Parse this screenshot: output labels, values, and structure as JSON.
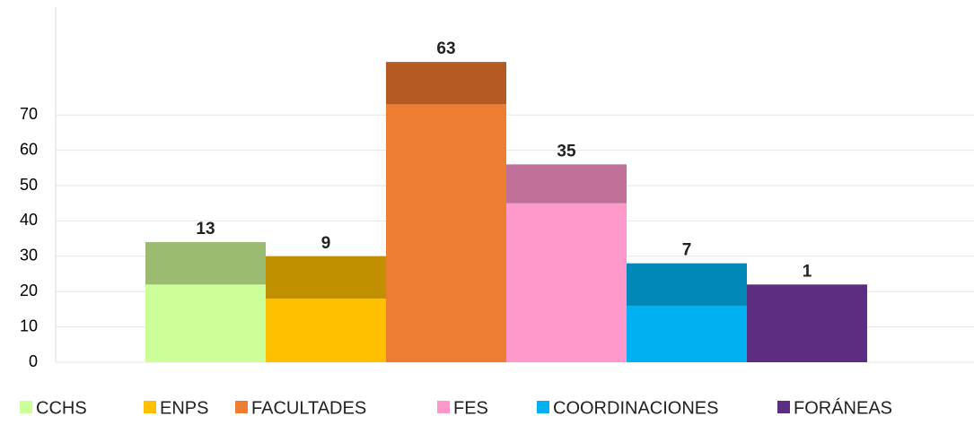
{
  "chart_data": {
    "type": "bar",
    "stacked": true,
    "categories": [
      "CCHS",
      "ENPS",
      "FACULTADES",
      "FES",
      "COORDINACIONES",
      "FORÁNEAS"
    ],
    "series": [
      {
        "colors": [
          "#ccff99",
          "#ffc000",
          "#ed7d31",
          "#ff99cc",
          "#00b0f0",
          "#5c2d82"
        ],
        "values": [
          22,
          18,
          73,
          45,
          16,
          22
        ]
      },
      {
        "colors": [
          "#9bbb72",
          "#c09000",
          "#b45a22",
          "#c07098",
          "#0088b8",
          "#5c2d82"
        ],
        "values": [
          12,
          12,
          12,
          11,
          12,
          0
        ]
      }
    ],
    "annotations": [
      "13",
      "9",
      "63",
      "35",
      "7",
      "1"
    ],
    "ylim": [
      0,
      100
    ],
    "yticks": [
      0,
      10,
      20,
      30,
      40,
      50,
      60,
      70
    ],
    "grid": true
  }
}
